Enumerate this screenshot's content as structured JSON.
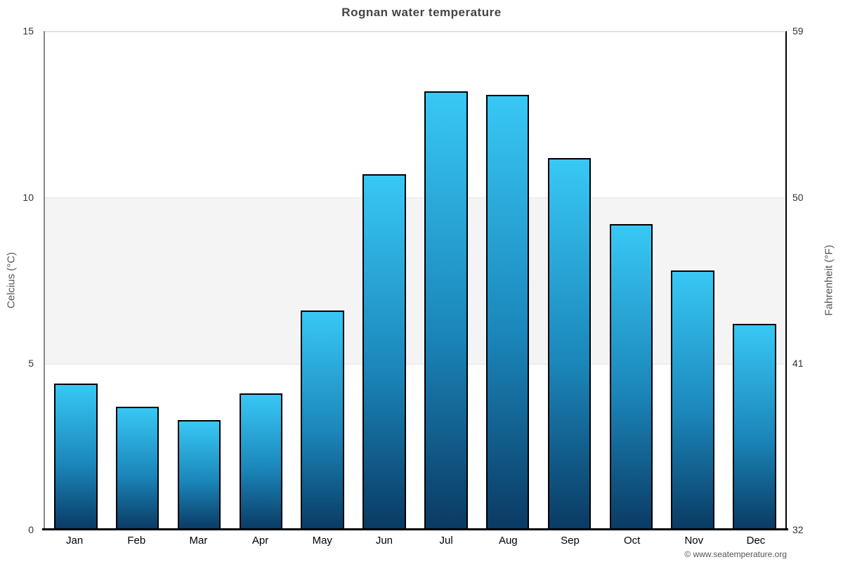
{
  "title": "Rognan water temperature",
  "axes": {
    "left_label": "Celcius (°C)",
    "right_label": "Fahrenheit (°F)",
    "left_ticks": [
      0,
      5,
      10,
      15
    ],
    "right_ticks": [
      32,
      41,
      50,
      59
    ]
  },
  "footer": {
    "copyright": "© www.seatemperature.org"
  },
  "chart_data": {
    "type": "bar",
    "title": "Rognan water temperature",
    "categories": [
      "Jan",
      "Feb",
      "Mar",
      "Apr",
      "May",
      "Jun",
      "Jul",
      "Aug",
      "Sep",
      "Oct",
      "Nov",
      "Dec"
    ],
    "values": [
      4.4,
      3.7,
      3.3,
      4.1,
      6.6,
      10.7,
      13.2,
      13.1,
      11.2,
      9.2,
      7.8,
      6.2
    ],
    "unit": "°C",
    "xlabel": "",
    "ylabel": "Celcius (°C)",
    "ylabel_right": "Fahrenheit (°F)",
    "ylim": [
      0,
      15
    ],
    "yticks_left": [
      0,
      5,
      10,
      15
    ],
    "yticks_right": [
      32,
      41,
      50,
      59
    ],
    "gridlines_at": [
      5,
      10,
      15
    ],
    "shaded_band": [
      5,
      10
    ],
    "legend": "none",
    "colors": {
      "bar_gradient_top": "#38c8f5",
      "bar_gradient_mid": "#1b86ba",
      "bar_gradient_bottom": "#0a3a63",
      "bar_border": "#000000",
      "band_fill": "#f4f4f4",
      "gridline": "#e6e6e6",
      "axis_line_bottom": "#000000",
      "title_text": "#444444",
      "tick_text": "#333333",
      "footer_text": "#555555"
    }
  }
}
